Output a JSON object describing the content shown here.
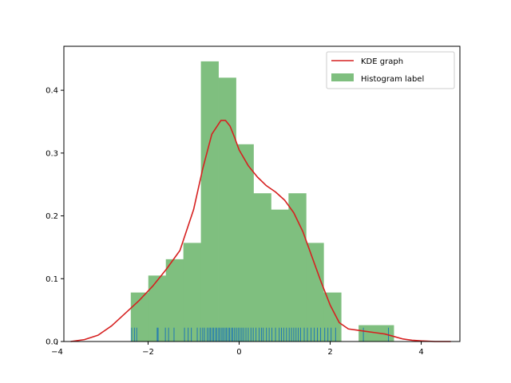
{
  "chart_data": {
    "type": "bar",
    "title": "",
    "xlabel": "",
    "ylabel": "",
    "xlim": [
      -3.85,
      4.85
    ],
    "ylim": [
      0,
      0.47
    ],
    "xticks": [
      -4,
      -2,
      0,
      2,
      4
    ],
    "yticks": [
      0.0,
      0.1,
      0.2,
      0.3,
      0.4
    ],
    "grid": false,
    "legend_position": "top-right",
    "histogram": {
      "name": "Histogram label",
      "color": "#7fbf7f",
      "bin_edges": [
        -2.38,
        -1.995,
        -1.61,
        -1.225,
        -0.84,
        -0.455,
        -0.07,
        0.315,
        0.7,
        1.085,
        1.47,
        1.855,
        2.24,
        2.625,
        3.01,
        3.395
      ],
      "heights": [
        0.078,
        0.105,
        0.131,
        0.157,
        0.446,
        0.42,
        0.314,
        0.236,
        0.21,
        0.236,
        0.157,
        0.078,
        0.0,
        0.026,
        0.026
      ]
    },
    "kde": {
      "name": "KDE graph",
      "color": "#d62020",
      "x": [
        -3.7,
        -3.4,
        -3.1,
        -2.8,
        -2.5,
        -2.2,
        -1.9,
        -1.6,
        -1.3,
        -1.0,
        -0.8,
        -0.6,
        -0.4,
        -0.3,
        -0.2,
        -0.1,
        0.0,
        0.2,
        0.4,
        0.6,
        0.8,
        1.0,
        1.2,
        1.4,
        1.6,
        1.8,
        2.0,
        2.2,
        2.4,
        2.6,
        2.8,
        3.0,
        3.2,
        3.4,
        3.6,
        3.8,
        4.0,
        4.3,
        4.65
      ],
      "y": [
        0.0,
        0.003,
        0.01,
        0.025,
        0.045,
        0.065,
        0.088,
        0.115,
        0.145,
        0.21,
        0.275,
        0.33,
        0.352,
        0.352,
        0.343,
        0.325,
        0.305,
        0.28,
        0.262,
        0.248,
        0.238,
        0.225,
        0.205,
        0.175,
        0.135,
        0.095,
        0.058,
        0.03,
        0.02,
        0.018,
        0.016,
        0.014,
        0.012,
        0.008,
        0.004,
        0.002,
        0.001,
        0.0,
        0.0
      ]
    },
    "rug": {
      "color": "#1f77b4",
      "height": 0.022,
      "x": [
        -2.36,
        -2.3,
        -2.25,
        -1.8,
        -1.78,
        -1.62,
        -1.55,
        -1.43,
        -1.2,
        -1.12,
        -1.05,
        -0.92,
        -0.85,
        -0.8,
        -0.76,
        -0.7,
        -0.66,
        -0.63,
        -0.59,
        -0.56,
        -0.52,
        -0.49,
        -0.45,
        -0.42,
        -0.38,
        -0.35,
        -0.31,
        -0.28,
        -0.24,
        -0.21,
        -0.17,
        -0.14,
        -0.1,
        -0.06,
        -0.02,
        0.02,
        0.06,
        0.1,
        0.15,
        0.2,
        0.26,
        0.31,
        0.37,
        0.44,
        0.49,
        0.53,
        0.6,
        0.66,
        0.72,
        0.8,
        0.88,
        0.93,
        0.98,
        1.04,
        1.1,
        1.15,
        1.2,
        1.25,
        1.3,
        1.35,
        1.43,
        1.5,
        1.58,
        1.65,
        1.72,
        1.79,
        1.88,
        1.95,
        2.02,
        2.12,
        2.73,
        3.28
      ]
    },
    "legend": [
      "KDE graph",
      "Histogram label"
    ]
  }
}
